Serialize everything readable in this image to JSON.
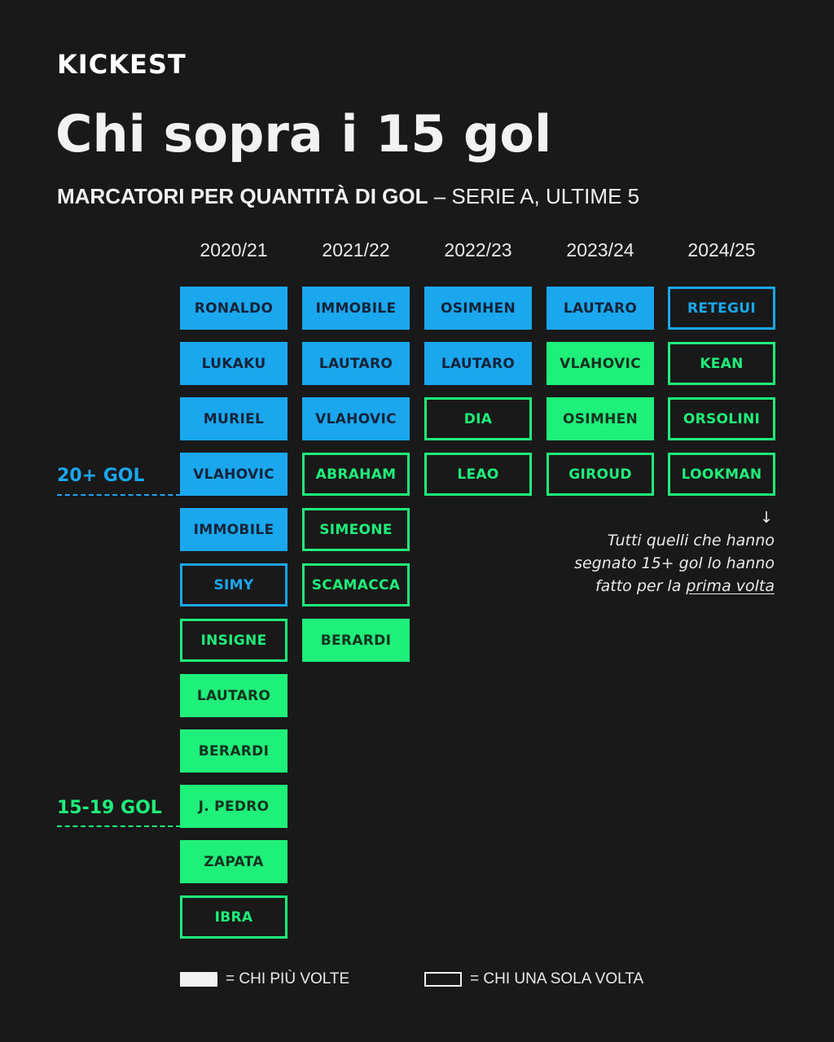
{
  "logo": "KICKEST",
  "title": "Chi sopra i 15 gol",
  "subtitle_bold": "MARCATORI PER QUANTITÀ DI GOL",
  "subtitle_rest": " – SERIE A, ULTIME 5",
  "tiers": {
    "upper": "20+ GOL",
    "lower": "15-19 GOL"
  },
  "colors": {
    "background": "#191919",
    "blue": "#1aa7ee",
    "green": "#1ff07a"
  },
  "seasons": [
    {
      "label": "2020/21",
      "players": [
        {
          "name": "RONALDO",
          "tier": "blue",
          "style": "filled"
        },
        {
          "name": "LUKAKU",
          "tier": "blue",
          "style": "filled"
        },
        {
          "name": "MURIEL",
          "tier": "blue",
          "style": "filled"
        },
        {
          "name": "VLAHOVIC",
          "tier": "blue",
          "style": "filled"
        },
        {
          "name": "IMMOBILE",
          "tier": "blue",
          "style": "filled"
        },
        {
          "name": "SIMY",
          "tier": "blue",
          "style": "outline"
        },
        {
          "name": "INSIGNE",
          "tier": "green",
          "style": "outline"
        },
        {
          "name": "LAUTARO",
          "tier": "green",
          "style": "filled"
        },
        {
          "name": "BERARDI",
          "tier": "green",
          "style": "filled"
        },
        {
          "name": "J. PEDRO",
          "tier": "green",
          "style": "filled"
        },
        {
          "name": "ZAPATA",
          "tier": "green",
          "style": "filled"
        },
        {
          "name": "IBRA",
          "tier": "green",
          "style": "outline"
        }
      ]
    },
    {
      "label": "2021/22",
      "players": [
        {
          "name": "IMMOBILE",
          "tier": "blue",
          "style": "filled"
        },
        {
          "name": "LAUTARO",
          "tier": "blue",
          "style": "filled"
        },
        {
          "name": "VLAHOVIC",
          "tier": "blue",
          "style": "filled"
        },
        {
          "name": "ABRAHAM",
          "tier": "green",
          "style": "outline"
        },
        {
          "name": "SIMEONE",
          "tier": "green",
          "style": "outline"
        },
        {
          "name": "SCAMACCA",
          "tier": "green",
          "style": "outline"
        },
        {
          "name": "BERARDI",
          "tier": "green",
          "style": "filled"
        }
      ]
    },
    {
      "label": "2022/23",
      "players": [
        {
          "name": "OSIMHEN",
          "tier": "blue",
          "style": "filled"
        },
        {
          "name": "LAUTARO",
          "tier": "blue",
          "style": "filled"
        },
        {
          "name": "DIA",
          "tier": "green",
          "style": "outline"
        },
        {
          "name": "LEAO",
          "tier": "green",
          "style": "outline"
        }
      ]
    },
    {
      "label": "2023/24",
      "players": [
        {
          "name": "LAUTARO",
          "tier": "blue",
          "style": "filled"
        },
        {
          "name": "VLAHOVIC",
          "tier": "green",
          "style": "filled"
        },
        {
          "name": "OSIMHEN",
          "tier": "green",
          "style": "filled"
        },
        {
          "name": "GIROUD",
          "tier": "green",
          "style": "outline"
        }
      ]
    },
    {
      "label": "2024/25",
      "players": [
        {
          "name": "RETEGUI",
          "tier": "blue",
          "style": "outline"
        },
        {
          "name": "KEAN",
          "tier": "green",
          "style": "outline"
        },
        {
          "name": "ORSOLINI",
          "tier": "green",
          "style": "outline"
        },
        {
          "name": "LOOKMAN",
          "tier": "green",
          "style": "outline"
        }
      ]
    }
  ],
  "note": {
    "arrow": "↓",
    "line1": "Tutti quelli che hanno",
    "line2": "segnato 15+ gol lo hanno",
    "line3_pre": "fatto per la ",
    "line3_underlined": "prima volta"
  },
  "legend": {
    "filled": "= CHI PIÙ VOLTE",
    "outline": "= CHI UNA SOLA VOLTA"
  }
}
